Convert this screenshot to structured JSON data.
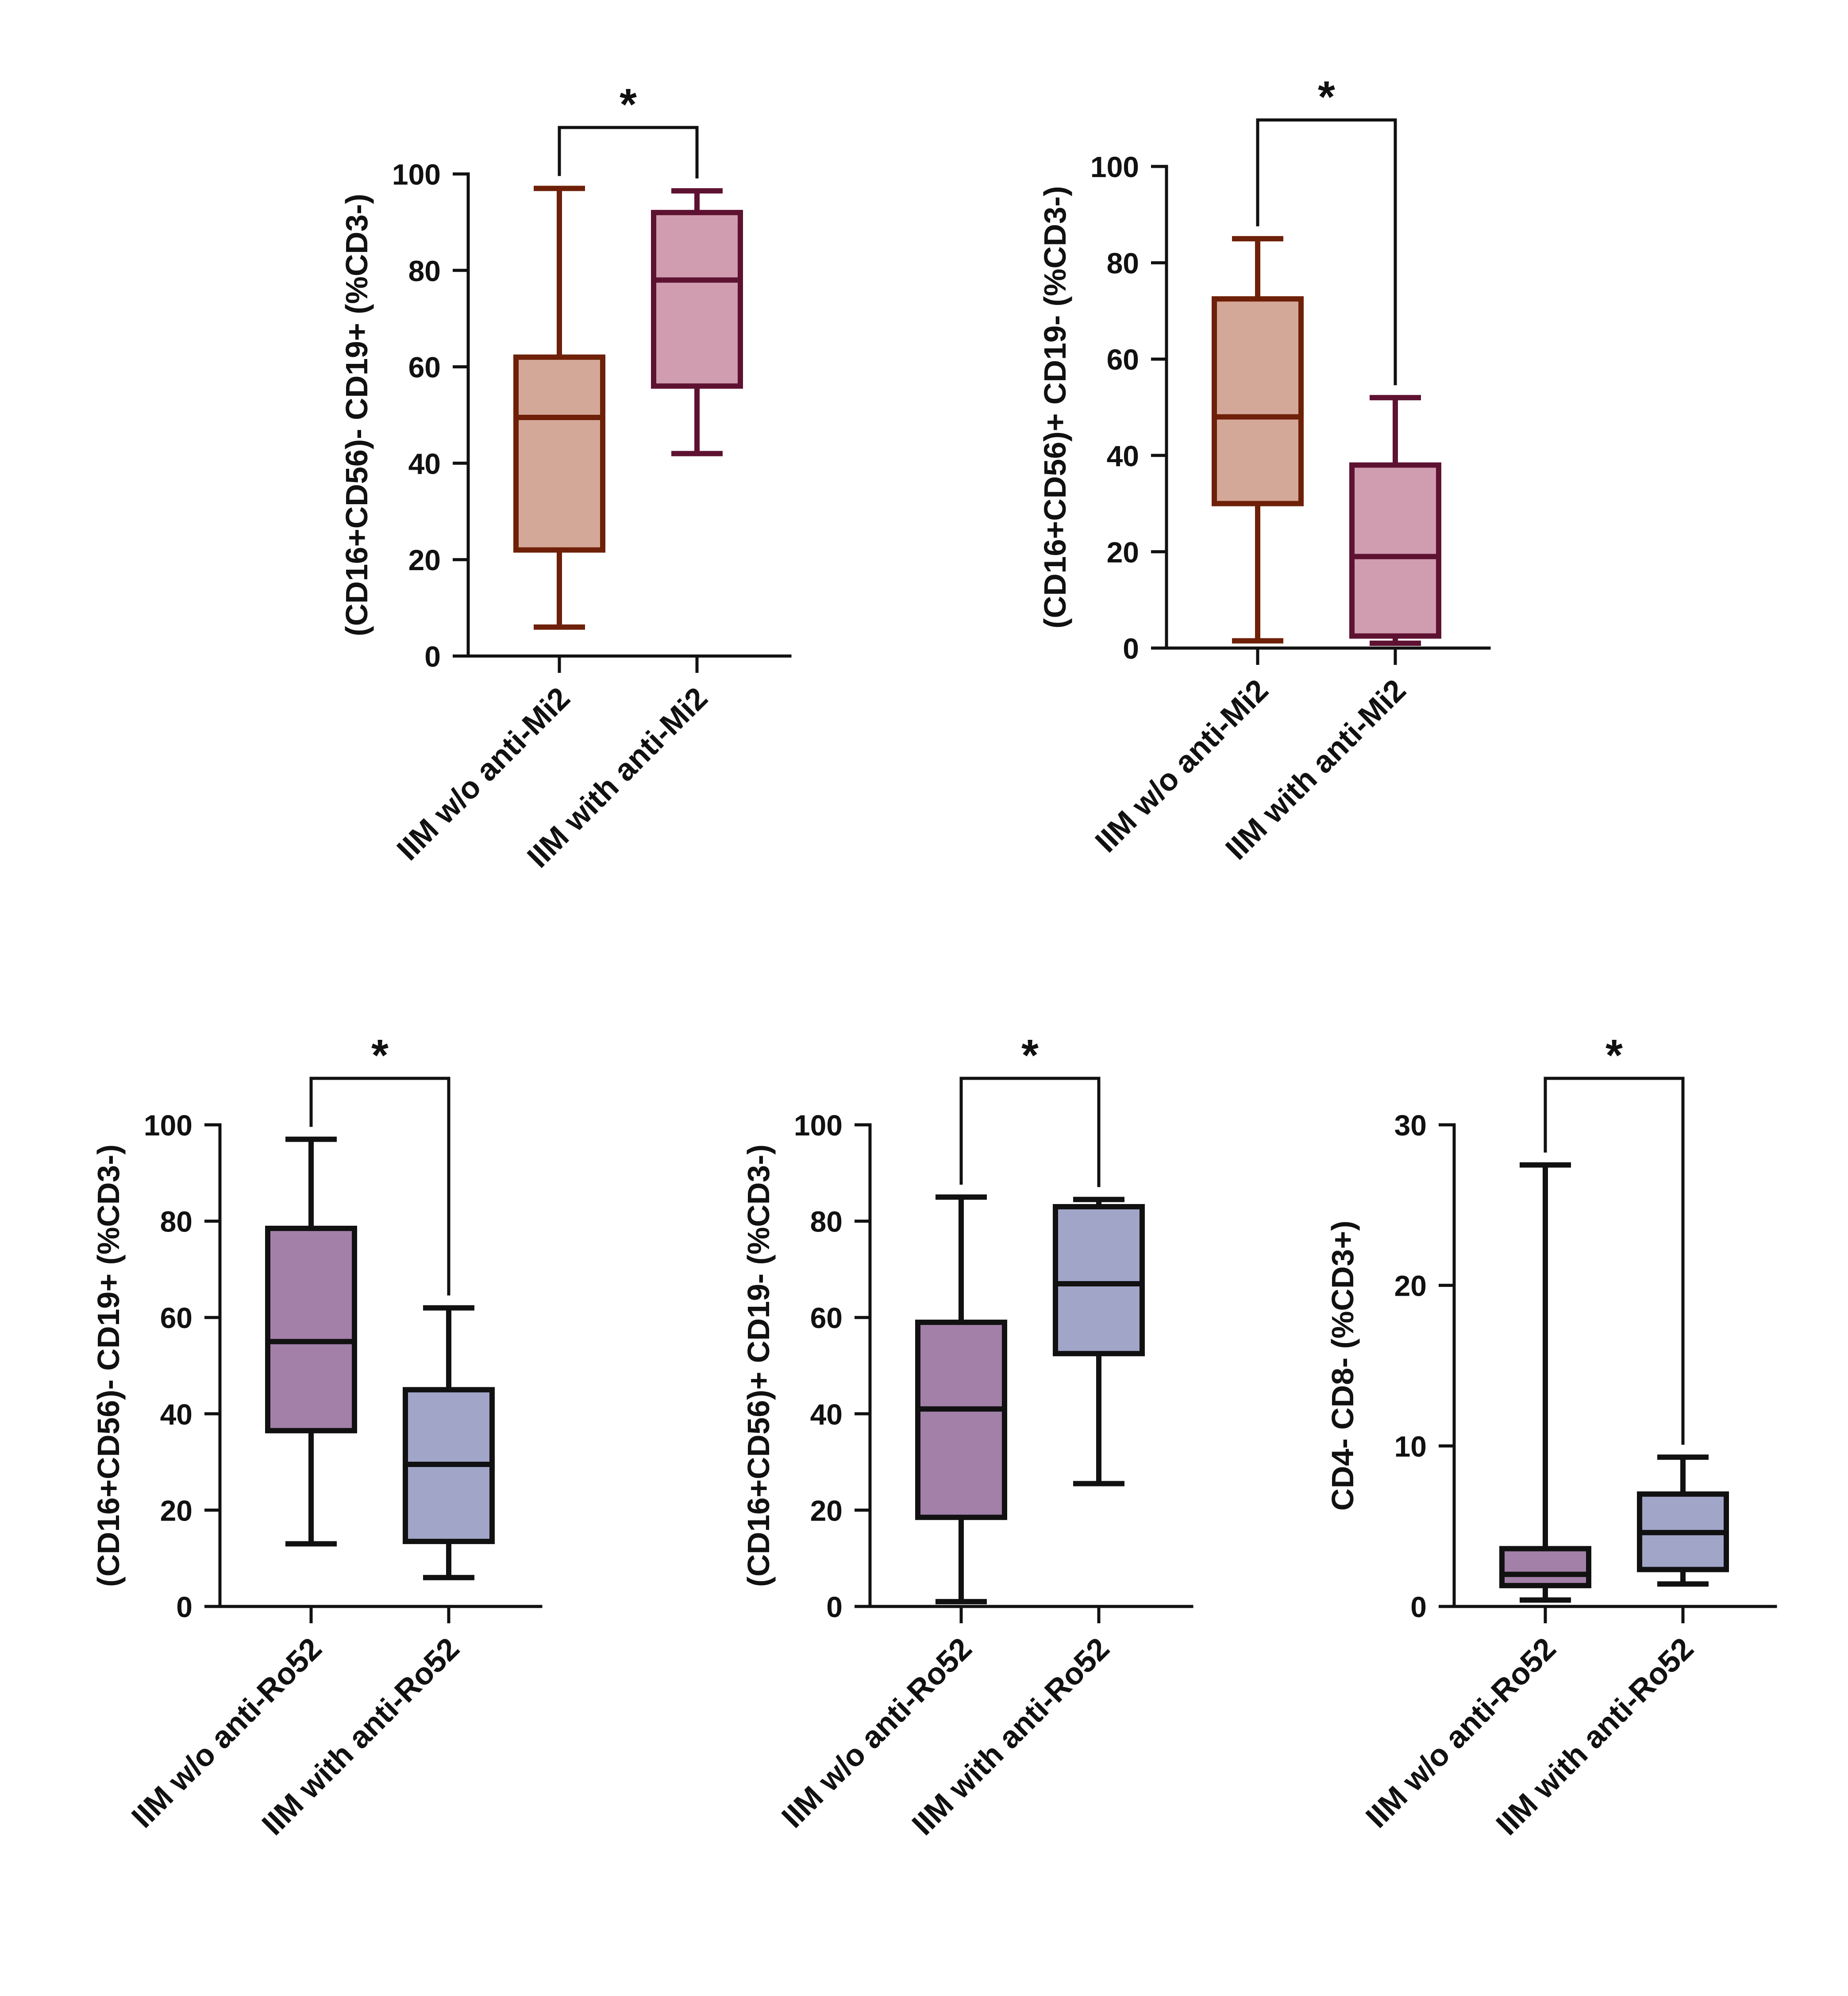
{
  "chart_data": [
    {
      "type": "box",
      "ylabel": "(CD16+CD56)- CD19+ (%CD3-)",
      "ylim": [
        0,
        100
      ],
      "yticks": [
        0,
        20,
        40,
        60,
        80,
        100
      ],
      "categories": [
        "IIM w/o anti-Mi2",
        "IIM with anti-Mi2"
      ],
      "series": [
        {
          "min": 6,
          "q1": 22,
          "median": 49.5,
          "q3": 62,
          "max": 97,
          "fill": "#d4a898",
          "stroke": "#6e2008"
        },
        {
          "min": 42,
          "q1": 56,
          "median": 78,
          "q3": 92,
          "max": 96.5,
          "fill": "#d09cb0",
          "stroke": "#5e1232"
        }
      ],
      "significance": {
        "from": 0,
        "to": 1,
        "label": "*"
      }
    },
    {
      "type": "box",
      "ylabel": "(CD16+CD56)+ CD19- (%CD3-)",
      "ylim": [
        0,
        100
      ],
      "yticks": [
        0,
        20,
        40,
        60,
        80,
        100
      ],
      "categories": [
        "IIM w/o anti-Mi2",
        "IIM with anti-Mi2"
      ],
      "series": [
        {
          "min": 1.5,
          "q1": 30,
          "median": 48,
          "q3": 72.5,
          "max": 85,
          "fill": "#d4a898",
          "stroke": "#6e2008"
        },
        {
          "min": 1,
          "q1": 2.5,
          "median": 19,
          "q3": 38,
          "max": 52,
          "fill": "#d09cb0",
          "stroke": "#5e1232"
        }
      ],
      "significance": {
        "from": 0,
        "to": 1,
        "label": "*"
      }
    },
    {
      "type": "box",
      "ylabel": "(CD16+CD56)- CD19+ (%CD3-)",
      "ylim": [
        0,
        100
      ],
      "yticks": [
        0,
        20,
        40,
        60,
        80,
        100
      ],
      "categories": [
        "IIM w/o anti-Ro52",
        "IIM with anti-Ro52"
      ],
      "series": [
        {
          "min": 13,
          "q1": 36.5,
          "median": 55,
          "q3": 78.5,
          "max": 97,
          "fill": "#a280a8",
          "stroke": "#111111"
        },
        {
          "min": 6,
          "q1": 13.5,
          "median": 29.5,
          "q3": 45,
          "max": 62,
          "fill": "#a1a5c8",
          "stroke": "#111111"
        }
      ],
      "significance": {
        "from": 0,
        "to": 1,
        "label": "*"
      }
    },
    {
      "type": "box",
      "ylabel": "(CD16+CD56)+ CD19- (%CD3-)",
      "ylim": [
        0,
        100
      ],
      "yticks": [
        0,
        20,
        40,
        60,
        80,
        100
      ],
      "categories": [
        "IIM w/o anti-Ro52",
        "IIM with anti-Ro52"
      ],
      "series": [
        {
          "min": 1,
          "q1": 18.5,
          "median": 41,
          "q3": 59,
          "max": 85,
          "fill": "#a280a8",
          "stroke": "#111111"
        },
        {
          "min": 25.5,
          "q1": 52.5,
          "median": 67,
          "q3": 83,
          "max": 84.5,
          "fill": "#a1a5c8",
          "stroke": "#111111"
        }
      ],
      "significance": {
        "from": 0,
        "to": 1,
        "label": "*"
      }
    },
    {
      "type": "box",
      "ylabel": "CD4- CD8- (%CD3+)",
      "ylim": [
        0,
        30
      ],
      "yticks": [
        0,
        10,
        20,
        30
      ],
      "categories": [
        "IIM w/o anti-Ro52",
        "IIM with anti-Ro52"
      ],
      "series": [
        {
          "min": 0.4,
          "q1": 1.3,
          "median": 2,
          "q3": 3.6,
          "max": 27.5,
          "fill": "#a280a8",
          "stroke": "#111111"
        },
        {
          "min": 1.4,
          "q1": 2.3,
          "median": 4.6,
          "q3": 7,
          "max": 9.3,
          "fill": "#a1a5c8",
          "stroke": "#111111"
        }
      ],
      "significance": {
        "from": 0,
        "to": 1,
        "label": "*"
      }
    }
  ]
}
